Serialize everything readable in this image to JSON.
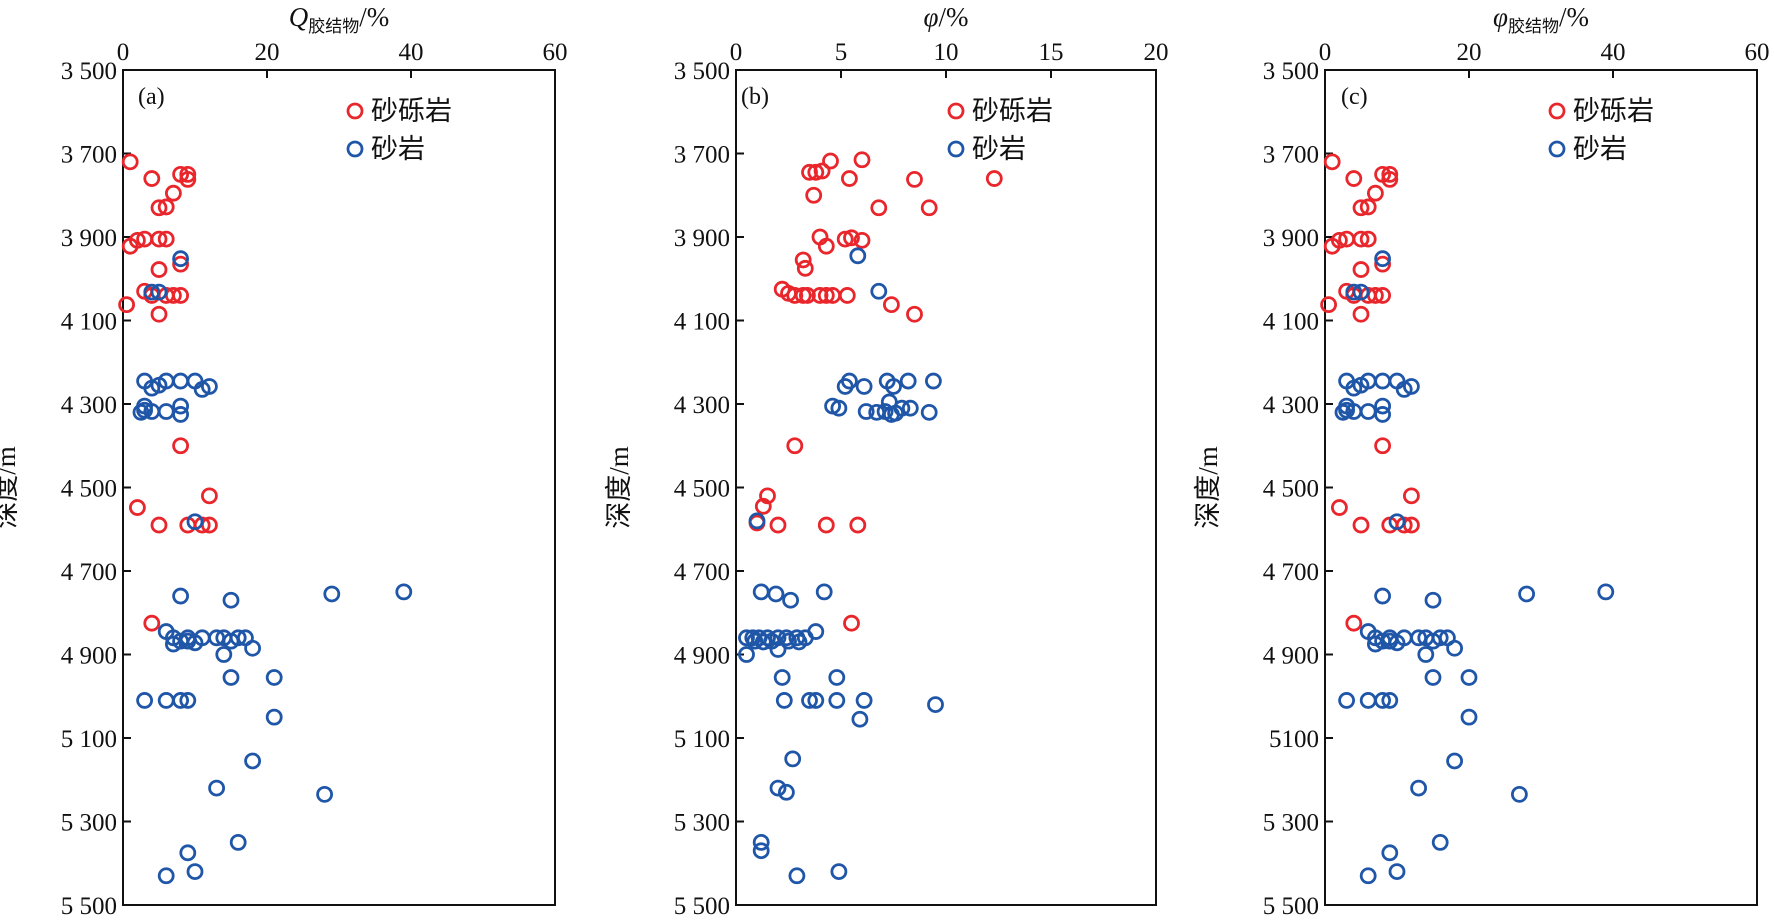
{
  "colors": {
    "sandy_conglomerate": "#e8262b",
    "sandstone": "#1f56a8",
    "axis": "#111111"
  },
  "legend": {
    "sandy_conglomerate": "砂砾岩",
    "sandstone": "砂岩"
  },
  "chart_data": [
    {
      "type": "scatter",
      "panel_label": "(a)",
      "xlabel_main": "Q",
      "xlabel_sub": "胶结物",
      "xlabel_suffix": "/%",
      "ylabel": "深度/m",
      "xlim": [
        0,
        60
      ],
      "ylim": [
        3500,
        5500
      ],
      "y_inverted": true,
      "xticks": [
        "0",
        "20",
        "40",
        "60"
      ],
      "yticks": [
        "3 500",
        "3 700",
        "3 900",
        "4 100",
        "4 300",
        "4 500",
        "4 700",
        "4 900",
        "5 100",
        "5 300",
        "5 500"
      ],
      "series": [
        {
          "name": "砂砾岩",
          "color_key": "sandy_conglomerate",
          "points": [
            [
              1,
              3720
            ],
            [
              4,
              3760
            ],
            [
              8,
              3750
            ],
            [
              9,
              3750
            ],
            [
              9,
              3762
            ],
            [
              7,
              3795
            ],
            [
              6,
              3828
            ],
            [
              5,
              3830
            ],
            [
              3,
              3905
            ],
            [
              2,
              3908
            ],
            [
              5,
              3905
            ],
            [
              6,
              3905
            ],
            [
              1,
              3922
            ],
            [
              8,
              3965
            ],
            [
              5,
              3978
            ],
            [
              3,
              4030
            ],
            [
              4,
              4040
            ],
            [
              6,
              4040
            ],
            [
              7,
              4040
            ],
            [
              8,
              4040
            ],
            [
              0.5,
              4062
            ],
            [
              5,
              4085
            ],
            [
              8,
              4400
            ],
            [
              12,
              4520
            ],
            [
              2,
              4548
            ],
            [
              5,
              4590
            ],
            [
              9,
              4590
            ],
            [
              11,
              4590
            ],
            [
              12,
              4590
            ],
            [
              4,
              4825
            ]
          ]
        },
        {
          "name": "砂岩",
          "color_key": "sandstone",
          "points": [
            [
              8,
              3952
            ],
            [
              4,
              4032
            ],
            [
              5,
              4032
            ],
            [
              3,
              4245
            ],
            [
              6,
              4245
            ],
            [
              8,
              4245
            ],
            [
              10,
              4245
            ],
            [
              12,
              4258
            ],
            [
              4,
              4262
            ],
            [
              5,
              4255
            ],
            [
              11,
              4265
            ],
            [
              3,
              4305
            ],
            [
              8,
              4305
            ],
            [
              3,
              4315
            ],
            [
              2.5,
              4320
            ],
            [
              4,
              4318
            ],
            [
              6,
              4318
            ],
            [
              8,
              4325
            ],
            [
              10,
              4582
            ],
            [
              8,
              4760
            ],
            [
              15,
              4770
            ],
            [
              29,
              4755
            ],
            [
              39,
              4750
            ],
            [
              6,
              4845
            ],
            [
              7,
              4860
            ],
            [
              9,
              4860
            ],
            [
              11,
              4860
            ],
            [
              13,
              4860
            ],
            [
              14,
              4860
            ],
            [
              16,
              4860
            ],
            [
              17,
              4860
            ],
            [
              8,
              4868
            ],
            [
              9,
              4868
            ],
            [
              10,
              4872
            ],
            [
              15,
              4868
            ],
            [
              7,
              4875
            ],
            [
              18,
              4885
            ],
            [
              14,
              4900
            ],
            [
              15,
              4955
            ],
            [
              21,
              4955
            ],
            [
              3,
              5010
            ],
            [
              6,
              5010
            ],
            [
              8,
              5010
            ],
            [
              9,
              5010
            ],
            [
              21,
              5050
            ],
            [
              18,
              5155
            ],
            [
              13,
              5220
            ],
            [
              28,
              5235
            ],
            [
              16,
              5350
            ],
            [
              9,
              5375
            ],
            [
              10,
              5420
            ],
            [
              6,
              5430
            ]
          ]
        }
      ]
    },
    {
      "type": "scatter",
      "panel_label": "(b)",
      "xlabel_main": "φ",
      "xlabel_sub": "",
      "xlabel_suffix": "/%",
      "ylabel": "深度/m",
      "xlim": [
        0,
        20
      ],
      "ylim": [
        3500,
        5500
      ],
      "y_inverted": true,
      "xticks": [
        "0",
        "5",
        "10",
        "15",
        "20"
      ],
      "yticks": [
        "3 500",
        "3 700",
        "3 900",
        "4 100",
        "4 300",
        "4 500",
        "4 700",
        "4 900",
        "5 100",
        "5 300",
        "5 500"
      ],
      "series": [
        {
          "name": "砂砾岩",
          "color_key": "sandy_conglomerate",
          "points": [
            [
              4.5,
              3718
            ],
            [
              6,
              3715
            ],
            [
              3.5,
              3745
            ],
            [
              3.8,
              3745
            ],
            [
              4.1,
              3742
            ],
            [
              5.4,
              3760
            ],
            [
              8.5,
              3762
            ],
            [
              12.3,
              3760
            ],
            [
              3.7,
              3800
            ],
            [
              6.8,
              3830
            ],
            [
              9.2,
              3830
            ],
            [
              4,
              3900
            ],
            [
              5.2,
              3905
            ],
            [
              5.5,
              3902
            ],
            [
              6,
              3908
            ],
            [
              4.3,
              3922
            ],
            [
              3.2,
              3955
            ],
            [
              3.3,
              3975
            ],
            [
              2.2,
              4025
            ],
            [
              2.5,
              4035
            ],
            [
              2.8,
              4040
            ],
            [
              3.2,
              4040
            ],
            [
              3.4,
              4040
            ],
            [
              4,
              4040
            ],
            [
              4.3,
              4040
            ],
            [
              4.6,
              4040
            ],
            [
              5.3,
              4040
            ],
            [
              7.4,
              4062
            ],
            [
              8.5,
              4085
            ],
            [
              2.8,
              4400
            ],
            [
              1.5,
              4520
            ],
            [
              1.3,
              4545
            ],
            [
              1,
              4585
            ],
            [
              2,
              4590
            ],
            [
              4.3,
              4590
            ],
            [
              5.8,
              4590
            ],
            [
              5.5,
              4825
            ]
          ]
        },
        {
          "name": "砂岩",
          "color_key": "sandstone",
          "points": [
            [
              5.8,
              3945
            ],
            [
              6.8,
              4030
            ],
            [
              5.4,
              4245
            ],
            [
              7.2,
              4245
            ],
            [
              8.2,
              4245
            ],
            [
              9.4,
              4245
            ],
            [
              5.2,
              4258
            ],
            [
              6.1,
              4258
            ],
            [
              7.5,
              4258
            ],
            [
              7.3,
              4295
            ],
            [
              4.6,
              4305
            ],
            [
              4.9,
              4310
            ],
            [
              6.2,
              4318
            ],
            [
              6.7,
              4320
            ],
            [
              7.1,
              4318
            ],
            [
              7.6,
              4322
            ],
            [
              7.9,
              4310
            ],
            [
              8.3,
              4310
            ],
            [
              9.2,
              4320
            ],
            [
              7.4,
              4325
            ],
            [
              1,
              4580
            ],
            [
              1.2,
              4750
            ],
            [
              1.9,
              4755
            ],
            [
              2.6,
              4770
            ],
            [
              4.2,
              4750
            ],
            [
              0.5,
              4860
            ],
            [
              0.8,
              4860
            ],
            [
              1.1,
              4860
            ],
            [
              1.5,
              4860
            ],
            [
              2,
              4860
            ],
            [
              2.4,
              4860
            ],
            [
              2.9,
              4860
            ],
            [
              3.3,
              4860
            ],
            [
              3.8,
              4845
            ],
            [
              0.9,
              4868
            ],
            [
              1.3,
              4870
            ],
            [
              1.7,
              4868
            ],
            [
              2.5,
              4868
            ],
            [
              3,
              4870
            ],
            [
              2,
              4888
            ],
            [
              0.5,
              4900
            ],
            [
              2.2,
              4955
            ],
            [
              4.8,
              4955
            ],
            [
              2.3,
              5010
            ],
            [
              3.5,
              5010
            ],
            [
              3.8,
              5010
            ],
            [
              4.8,
              5010
            ],
            [
              6.1,
              5010
            ],
            [
              9.5,
              5020
            ],
            [
              5.9,
              5055
            ],
            [
              2.7,
              5150
            ],
            [
              2,
              5220
            ],
            [
              2.4,
              5230
            ],
            [
              1.2,
              5350
            ],
            [
              1.2,
              5370
            ],
            [
              4.9,
              5420
            ],
            [
              2.9,
              5430
            ]
          ]
        }
      ]
    },
    {
      "type": "scatter",
      "panel_label": "(c)",
      "xlabel_main": "φ",
      "xlabel_sub": "胶结物",
      "xlabel_suffix": "/%",
      "ylabel": "深度/m",
      "xlim": [
        0,
        60
      ],
      "ylim": [
        3500,
        5500
      ],
      "y_inverted": true,
      "xticks": [
        "0",
        "20",
        "40",
        "60"
      ],
      "yticks": [
        "3 500",
        "3 700",
        "3 900",
        "4 100",
        "4 300",
        "4 500",
        "4 700",
        "4 900",
        "5100",
        "5 300",
        "5 500"
      ],
      "series": [
        {
          "name": "砂砾岩",
          "color_key": "sandy_conglomerate",
          "points": [
            [
              1,
              3720
            ],
            [
              4,
              3760
            ],
            [
              8,
              3750
            ],
            [
              9,
              3750
            ],
            [
              9,
              3762
            ],
            [
              7,
              3795
            ],
            [
              6,
              3828
            ],
            [
              5,
              3830
            ],
            [
              3,
              3905
            ],
            [
              2,
              3908
            ],
            [
              5,
              3905
            ],
            [
              6,
              3905
            ],
            [
              1,
              3922
            ],
            [
              8,
              3965
            ],
            [
              5,
              3978
            ],
            [
              3,
              4030
            ],
            [
              4,
              4040
            ],
            [
              6,
              4040
            ],
            [
              7,
              4040
            ],
            [
              8,
              4040
            ],
            [
              0.5,
              4062
            ],
            [
              5,
              4085
            ],
            [
              8,
              4400
            ],
            [
              12,
              4520
            ],
            [
              2,
              4548
            ],
            [
              5,
              4590
            ],
            [
              9,
              4590
            ],
            [
              11,
              4590
            ],
            [
              12,
              4590
            ],
            [
              4,
              4825
            ]
          ]
        },
        {
          "name": "砂岩",
          "color_key": "sandstone",
          "points": [
            [
              8,
              3952
            ],
            [
              4,
              4032
            ],
            [
              5,
              4032
            ],
            [
              3,
              4245
            ],
            [
              6,
              4245
            ],
            [
              8,
              4245
            ],
            [
              10,
              4245
            ],
            [
              12,
              4258
            ],
            [
              4,
              4262
            ],
            [
              5,
              4255
            ],
            [
              11,
              4265
            ],
            [
              3,
              4305
            ],
            [
              8,
              4305
            ],
            [
              3,
              4315
            ],
            [
              2.5,
              4320
            ],
            [
              4,
              4318
            ],
            [
              6,
              4318
            ],
            [
              8,
              4325
            ],
            [
              10,
              4582
            ],
            [
              8,
              4760
            ],
            [
              15,
              4770
            ],
            [
              28,
              4755
            ],
            [
              39,
              4750
            ],
            [
              6,
              4845
            ],
            [
              7,
              4860
            ],
            [
              9,
              4860
            ],
            [
              11,
              4860
            ],
            [
              13,
              4860
            ],
            [
              14,
              4860
            ],
            [
              16,
              4860
            ],
            [
              17,
              4860
            ],
            [
              8,
              4868
            ],
            [
              9,
              4868
            ],
            [
              10,
              4872
            ],
            [
              15,
              4868
            ],
            [
              7,
              4875
            ],
            [
              18,
              4885
            ],
            [
              14,
              4900
            ],
            [
              15,
              4955
            ],
            [
              20,
              4955
            ],
            [
              3,
              5010
            ],
            [
              6,
              5010
            ],
            [
              8,
              5010
            ],
            [
              9,
              5010
            ],
            [
              20,
              5050
            ],
            [
              18,
              5155
            ],
            [
              13,
              5220
            ],
            [
              27,
              5235
            ],
            [
              16,
              5350
            ],
            [
              9,
              5375
            ],
            [
              10,
              5420
            ],
            [
              6,
              5430
            ]
          ]
        }
      ]
    }
  ]
}
